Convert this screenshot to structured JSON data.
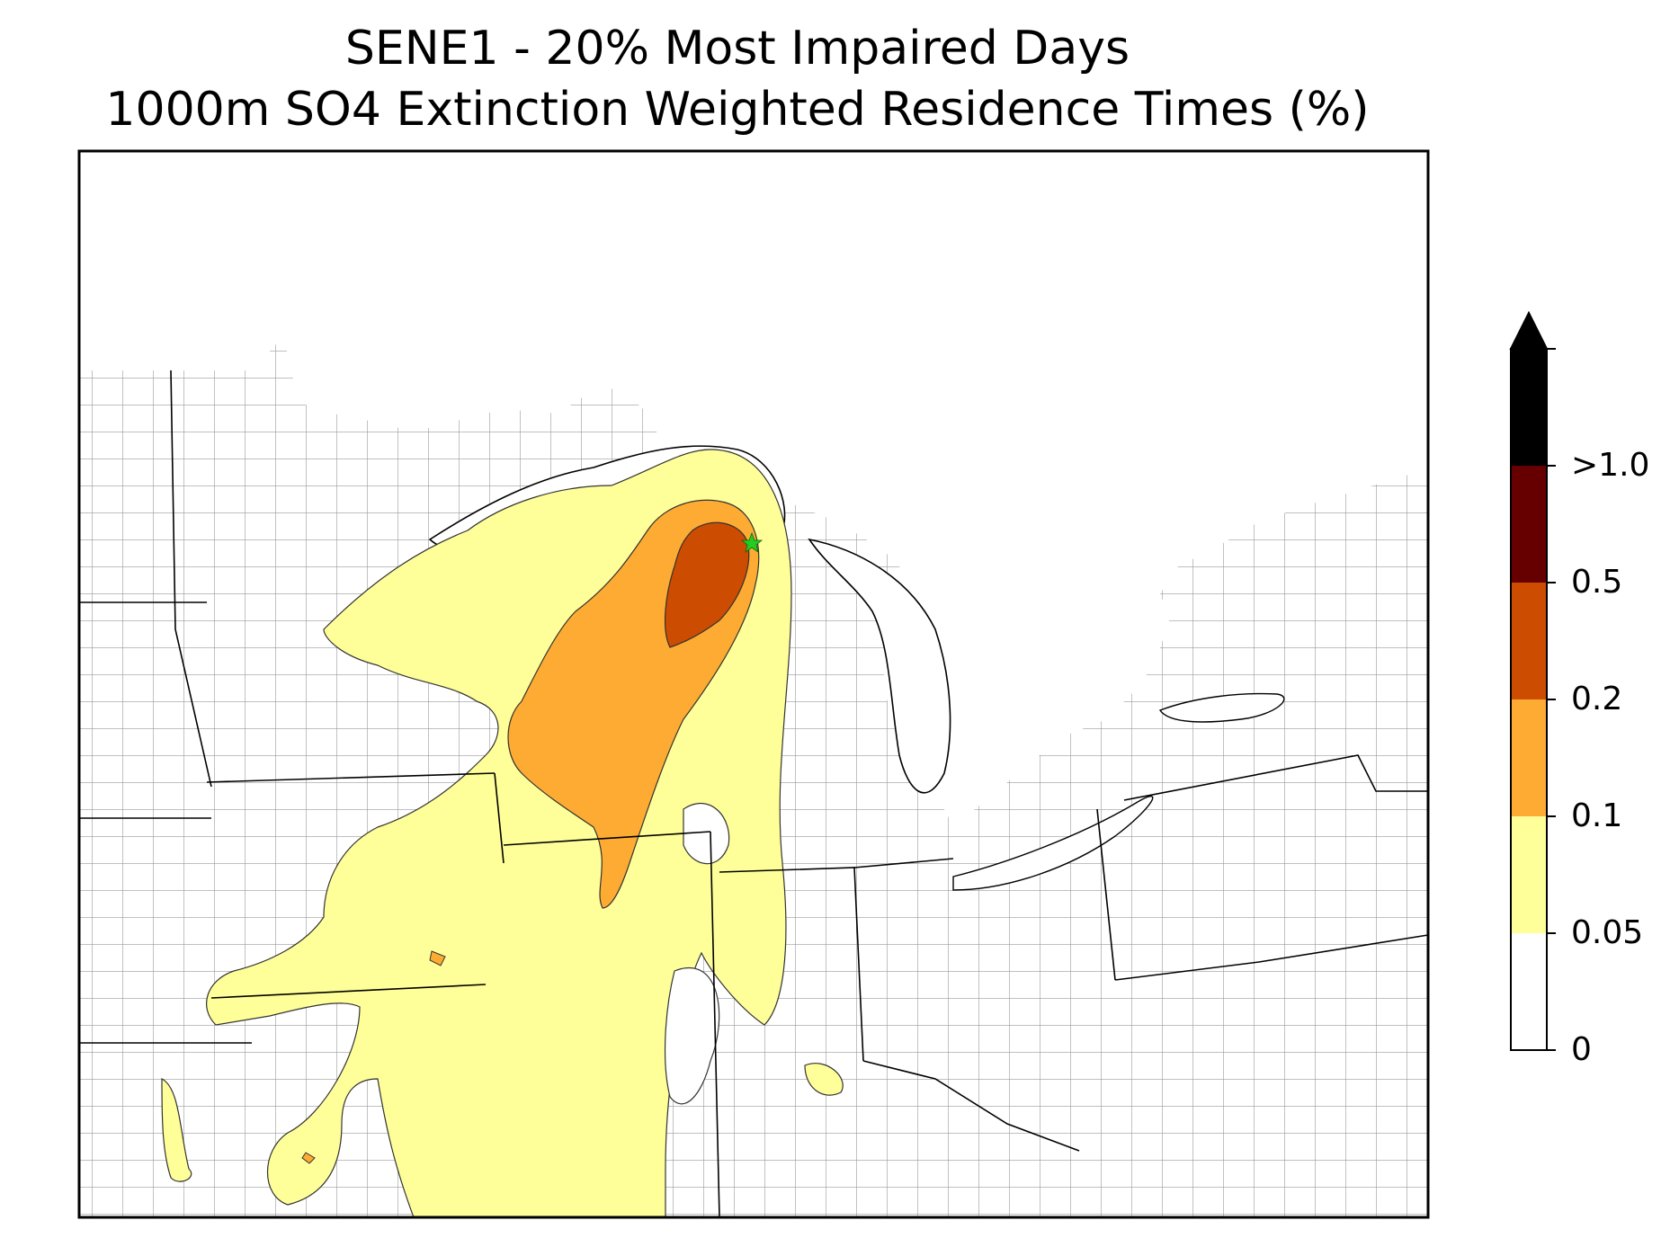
{
  "title_line1": "SENE1 - 20% Most Impaired Days",
  "title_line2": "1000m SO4 Extinction Weighted Residence Times (%)",
  "colorbar": {
    "levels": [
      {
        "label": "0",
        "color": "#ffffff"
      },
      {
        "label": "0.05",
        "color": "#ffff99"
      },
      {
        "label": "0.1",
        "color": "#fdab33"
      },
      {
        "label": "0.2",
        "color": "#cc4c02"
      },
      {
        "label": "0.5",
        "color": "#660000"
      },
      {
        "label": ">1.0",
        "color": "#000000"
      }
    ],
    "extend": "max"
  },
  "colors": {
    "county_lines": "#9a9a9a",
    "state_lines": "#000000",
    "site_marker": "#22cc22"
  },
  "site_marker_icon": "star-icon"
}
